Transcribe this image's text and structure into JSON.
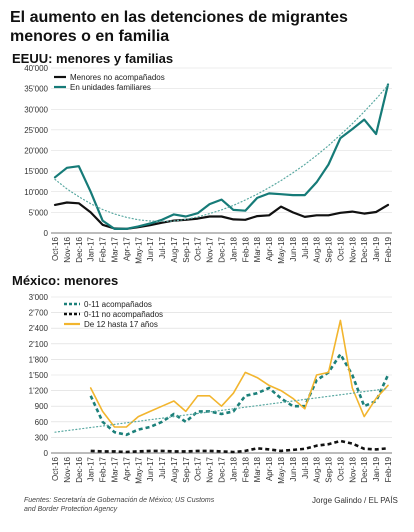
{
  "title": "El aumento en las detenciones de migrantes menores o en familia",
  "footer": {
    "source": "Fuentes: Secretaría de Gobernación de México; US Customs and Border Protection Agency",
    "credit": "Jorge Galindo / EL PAÍS"
  },
  "chart_data": [
    {
      "type": "line",
      "title": "EEUU: menores y familias",
      "categories": [
        "Oct-16",
        "Nov-16",
        "Dec-16",
        "Jan-17",
        "Feb-17",
        "Mar-17",
        "Apr-17",
        "May-17",
        "Jun-17",
        "Jul-17",
        "Aug-17",
        "Sep-17",
        "Oct-17",
        "Nov-17",
        "Dec-17",
        "Jan-18",
        "Feb-18",
        "Mar-18",
        "Apr-18",
        "May-18",
        "Jun-18",
        "Jul-18",
        "Aug-18",
        "Sep-18",
        "Oct-18",
        "Nov-18",
        "Dec-18",
        "Jan-19",
        "Feb-19"
      ],
      "ylim": [
        0,
        40000
      ],
      "yticks": [
        "0",
        "5'000",
        "10'000",
        "15'000",
        "20'000",
        "25'000",
        "30'000",
        "35'000",
        "40'000"
      ],
      "ytick_values": [
        0,
        5000,
        10000,
        15000,
        20000,
        25000,
        30000,
        35000,
        40000
      ],
      "legend": "top-left",
      "series": [
        {
          "name": "Menores no acompañados",
          "color": "#111111",
          "style": "solid",
          "values": [
            6800,
            7400,
            7200,
            5000,
            2000,
            1100,
            1000,
            1400,
            1900,
            2500,
            3000,
            3200,
            3500,
            4000,
            4000,
            3300,
            3200,
            4100,
            4300,
            6400,
            5000,
            3900,
            4300,
            4300,
            4900,
            5200,
            4700,
            5100,
            6800
          ]
        },
        {
          "name": "En unidades familiares",
          "color": "#167b78",
          "style": "solid",
          "values": [
            13500,
            15800,
            16200,
            10000,
            3000,
            1000,
            1000,
            1600,
            2300,
            3200,
            4500,
            4000,
            4800,
            7000,
            8100,
            5600,
            5400,
            8500,
            9600,
            9400,
            9200,
            9200,
            12300,
            16600,
            23000,
            25200,
            27500,
            24000,
            36000
          ]
        },
        {
          "name": "",
          "color": "#5aa9a2",
          "style": "dotted",
          "legend": false,
          "values": [
            13000,
            10700,
            8800,
            7100,
            5700,
            4600,
            3800,
            3200,
            2900,
            2800,
            2900,
            3300,
            3900,
            4700,
            5600,
            6700,
            8000,
            9400,
            11000,
            12700,
            14600,
            16600,
            18800,
            21200,
            23800,
            26500,
            29400,
            32500,
            35800
          ]
        }
      ]
    },
    {
      "type": "line",
      "title": "México: menores",
      "categories": [
        "Oct-16",
        "Nov-16",
        "Dec-16",
        "Jan-17",
        "Feb-17",
        "Mar-17",
        "Apr-17",
        "May-17",
        "Jun-17",
        "Jul-17",
        "Aug-17",
        "Sep-17",
        "Oct-17",
        "Nov-17",
        "Dec-17",
        "Jan-18",
        "Feb-18",
        "Mar-18",
        "Apr-18",
        "May-18",
        "Jun-18",
        "Jul-18",
        "Aug-18",
        "Sep-18",
        "Oct-18",
        "Nov-18",
        "Dec-18",
        "Jan-19",
        "Feb-19"
      ],
      "ylim": [
        0,
        3000
      ],
      "yticks": [
        "0",
        "300",
        "600",
        "900",
        "1'200",
        "1'500",
        "1'800",
        "2'100",
        "2'400",
        "2'700",
        "3'000"
      ],
      "ytick_values": [
        0,
        300,
        600,
        900,
        1200,
        1500,
        1800,
        2100,
        2400,
        2700,
        3000
      ],
      "legend": "top-left",
      "series": [
        {
          "name": "0-11 acompañados",
          "color": "#1c807a",
          "style": "dashed",
          "values": [
            null,
            null,
            null,
            1100,
            600,
            400,
            350,
            450,
            500,
            600,
            750,
            600,
            800,
            800,
            750,
            800,
            1100,
            1150,
            1250,
            1050,
            900,
            900,
            1400,
            1550,
            1900,
            1500,
            900,
            1000,
            1500
          ]
        },
        {
          "name": "0-11 no acompañados",
          "color": "#111111",
          "style": "dashed",
          "values": [
            null,
            null,
            null,
            40,
            30,
            30,
            20,
            30,
            40,
            40,
            30,
            30,
            40,
            40,
            30,
            20,
            40,
            90,
            70,
            40,
            60,
            80,
            140,
            170,
            230,
            180,
            80,
            70,
            90
          ]
        },
        {
          "name": "De 12 hasta 17 años",
          "color": "#f2b52e",
          "style": "solid",
          "values": [
            null,
            null,
            null,
            1250,
            800,
            500,
            500,
            700,
            800,
            900,
            1000,
            800,
            1100,
            1100,
            900,
            1150,
            1550,
            1450,
            1300,
            1200,
            1050,
            850,
            1500,
            1550,
            2550,
            1250,
            700,
            1050,
            1300
          ]
        },
        {
          "name": "",
          "color": "#5aa9a2",
          "style": "dotted",
          "legend": false,
          "values": [
            400,
            430,
            460,
            490,
            520,
            550,
            580,
            610,
            640,
            670,
            700,
            730,
            760,
            790,
            820,
            850,
            880,
            910,
            940,
            970,
            1000,
            1030,
            1060,
            1090,
            1120,
            1150,
            1180,
            1210,
            1240
          ]
        }
      ]
    }
  ]
}
